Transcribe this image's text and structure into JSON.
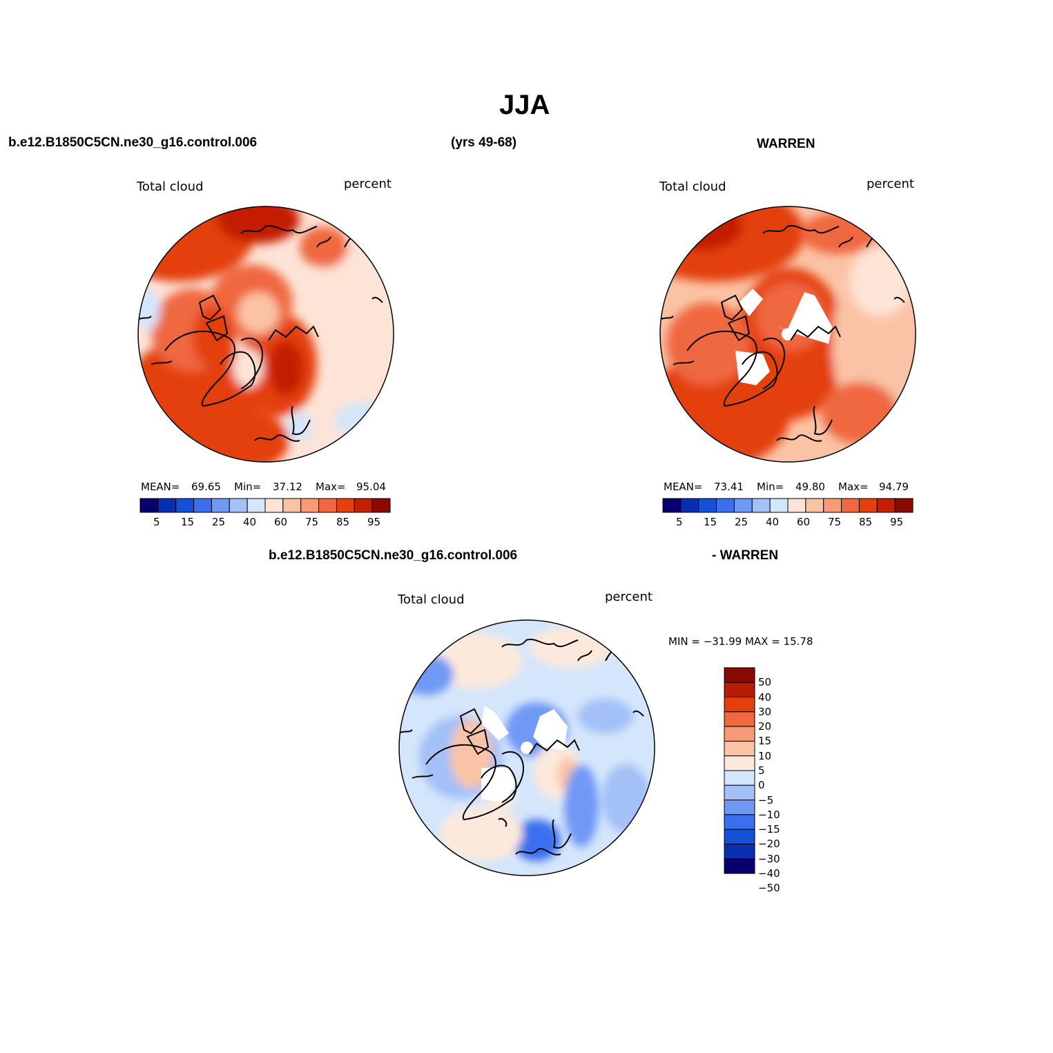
{
  "title": "JJA",
  "header": {
    "case": "b.e12.B1850C5CN.ne30_g16.control.006",
    "years": "(yrs 49-68)",
    "obs": "WARREN"
  },
  "diff_header": {
    "case": "b.e12.B1850C5CN.ne30_g16.control.006",
    "obs": "- WARREN"
  },
  "colors": {
    "seq": [
      "#08006e",
      "#0a2fae",
      "#1650d8",
      "#3a6ff0",
      "#6f99f5",
      "#a3c0f7",
      "#d4e6fb",
      "#fde4d6",
      "#fbc3a5",
      "#f79b76",
      "#ef6840",
      "#e4400e",
      "#c41e06",
      "#8b0a00"
    ],
    "diff": [
      "#08006e",
      "#0a2fae",
      "#1650d8",
      "#3a6ff0",
      "#6f99f5",
      "#a3c0f7",
      "#d4e6fb",
      "#fde9dc",
      "#fbc3a5",
      "#f79b76",
      "#ef6840",
      "#e4400e",
      "#b81c04",
      "#8b0a00"
    ],
    "land": "#000000"
  },
  "chart_data": [
    {
      "type": "heatmap",
      "projection": "north-polar-stereographic",
      "panel": "model",
      "left_label": "Total cloud",
      "right_label": "percent",
      "stats": {
        "mean_label": "MEAN=",
        "mean": "69.65",
        "min_label": "Min=",
        "min": "37.12",
        "max_label": "Max=",
        "max": "95.04"
      },
      "colorbar": {
        "orientation": "horizontal",
        "levels": [
          5,
          10,
          15,
          20,
          25,
          30,
          40,
          50,
          60,
          70,
          75,
          80,
          85,
          90,
          95
        ],
        "tick_labels": [
          "5",
          "15",
          "25",
          "40",
          "60",
          "75",
          "85",
          "95"
        ]
      }
    },
    {
      "type": "heatmap",
      "projection": "north-polar-stereographic",
      "panel": "obs",
      "left_label": "Total cloud",
      "right_label": "percent",
      "stats": {
        "mean_label": "MEAN=",
        "mean": "73.41",
        "min_label": "Min=",
        "min": "49.80",
        "max_label": "Max=",
        "max": "94.79"
      },
      "colorbar": {
        "orientation": "horizontal",
        "levels": [
          5,
          10,
          15,
          20,
          25,
          30,
          40,
          50,
          60,
          70,
          75,
          80,
          85,
          90,
          95
        ],
        "tick_labels": [
          "5",
          "15",
          "25",
          "40",
          "60",
          "75",
          "85",
          "95"
        ]
      }
    },
    {
      "type": "heatmap",
      "projection": "north-polar-stereographic",
      "panel": "difference",
      "left_label": "Total cloud",
      "right_label": "percent",
      "stats": {
        "text": "MIN = −31.99 MAX =  15.78",
        "min": -31.99,
        "max": 15.78
      },
      "colorbar": {
        "orientation": "vertical",
        "levels": [
          -50,
          -40,
          -30,
          -20,
          -15,
          -10,
          -5,
          0,
          5,
          10,
          15,
          20,
          30,
          40,
          50
        ],
        "tick_labels": [
          "50",
          "40",
          "30",
          "20",
          "15",
          "10",
          "5",
          "0",
          "−5",
          "−10",
          "−15",
          "−20",
          "−30",
          "−40",
          "−50"
        ]
      }
    }
  ]
}
